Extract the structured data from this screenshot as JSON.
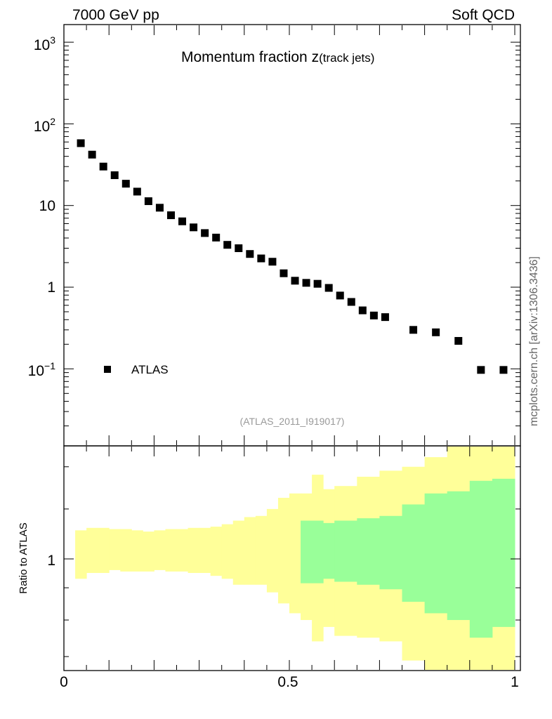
{
  "header": {
    "left": "7000 GeV pp",
    "right": "Soft QCD"
  },
  "side_label": "mcplots.cern.ch [arXiv:1306.3436]",
  "chart_data": [
    {
      "type": "scatter",
      "title_main": "Momentum fraction z",
      "title_sub": "(track jets)",
      "analysis_tag": "(ATLAS_2011_I919017)",
      "xlim": [
        0,
        1
      ],
      "ylim": [
        0.01,
        1500
      ],
      "y_scale": "log",
      "y_tick_labels": [
        "10^-1",
        "1",
        "10",
        "10^2",
        "10^3"
      ],
      "legend": {
        "position": "bottom-left",
        "entries": [
          "ATLAS"
        ]
      },
      "series": [
        {
          "name": "ATLAS",
          "marker": "filled-square",
          "color": "#000000",
          "x": [
            0.0375,
            0.0625,
            0.0875,
            0.1125,
            0.1375,
            0.1625,
            0.1875,
            0.2125,
            0.2375,
            0.2625,
            0.2875,
            0.3125,
            0.3375,
            0.3625,
            0.3875,
            0.4125,
            0.4375,
            0.4625,
            0.4875,
            0.5125,
            0.5375,
            0.5625,
            0.5875,
            0.6125,
            0.6375,
            0.6625,
            0.6875,
            0.7125,
            0.775,
            0.825,
            0.875,
            0.925,
            0.975
          ],
          "y": [
            58,
            42,
            30,
            23.5,
            18.5,
            14.8,
            11.3,
            9.4,
            7.6,
            6.4,
            5.4,
            4.6,
            4.05,
            3.3,
            3.0,
            2.55,
            2.25,
            2.05,
            1.48,
            1.2,
            1.13,
            1.1,
            0.98,
            0.79,
            0.66,
            0.52,
            0.45,
            0.43,
            0.3,
            0.28,
            0.22,
            0.097,
            0.097
          ]
        }
      ]
    },
    {
      "type": "area",
      "ylabel": "Ratio to ATLAS",
      "xlim": [
        0,
        1
      ],
      "y_tick_labels": [
        "1"
      ],
      "x_tick_labels": [
        "0",
        "0.5",
        "1"
      ],
      "colors": {
        "outer_band": "#ffff99",
        "inner_band": "#99ff99"
      },
      "bins": [
        {
          "lo": 0.025,
          "hi": 0.05,
          "outer": [
            0.93,
            1.11
          ]
        },
        {
          "lo": 0.05,
          "hi": 0.075,
          "outer": [
            0.95,
            1.12
          ]
        },
        {
          "lo": 0.075,
          "hi": 0.1,
          "outer": [
            0.95,
            1.12
          ]
        },
        {
          "lo": 0.1,
          "hi": 0.125,
          "outer": [
            0.96,
            1.115
          ]
        },
        {
          "lo": 0.125,
          "hi": 0.15,
          "outer": [
            0.955,
            1.115
          ]
        },
        {
          "lo": 0.15,
          "hi": 0.175,
          "outer": [
            0.955,
            1.11
          ]
        },
        {
          "lo": 0.175,
          "hi": 0.2,
          "outer": [
            0.955,
            1.105
          ]
        },
        {
          "lo": 0.2,
          "hi": 0.225,
          "outer": [
            0.96,
            1.11
          ]
        },
        {
          "lo": 0.225,
          "hi": 0.25,
          "outer": [
            0.955,
            1.115
          ]
        },
        {
          "lo": 0.25,
          "hi": 0.275,
          "outer": [
            0.955,
            1.115
          ]
        },
        {
          "lo": 0.275,
          "hi": 0.3,
          "outer": [
            0.95,
            1.12
          ]
        },
        {
          "lo": 0.3,
          "hi": 0.325,
          "outer": [
            0.95,
            1.12
          ]
        },
        {
          "lo": 0.325,
          "hi": 0.35,
          "outer": [
            0.94,
            1.125
          ]
        },
        {
          "lo": 0.35,
          "hi": 0.375,
          "outer": [
            0.93,
            1.135
          ]
        },
        {
          "lo": 0.375,
          "hi": 0.4,
          "outer": [
            0.91,
            1.15
          ]
        },
        {
          "lo": 0.4,
          "hi": 0.425,
          "outer": [
            0.91,
            1.165
          ]
        },
        {
          "lo": 0.425,
          "hi": 0.45,
          "outer": [
            0.91,
            1.17
          ]
        },
        {
          "lo": 0.45,
          "hi": 0.475,
          "outer": [
            0.885,
            1.2
          ]
        },
        {
          "lo": 0.475,
          "hi": 0.5,
          "outer": [
            0.85,
            1.25
          ]
        },
        {
          "lo": 0.5,
          "hi": 0.525,
          "outer": [
            0.82,
            1.27
          ]
        },
        {
          "lo": 0.525,
          "hi": 0.55,
          "outer": [
            0.8,
            1.27
          ],
          "inner": [
            0.915,
            1.15
          ]
        },
        {
          "lo": 0.55,
          "hi": 0.575,
          "outer": [
            0.74,
            1.36
          ],
          "inner": [
            0.915,
            1.15
          ]
        },
        {
          "lo": 0.575,
          "hi": 0.6,
          "outer": [
            0.78,
            1.29
          ],
          "inner": [
            0.93,
            1.14
          ]
        },
        {
          "lo": 0.6,
          "hi": 0.65,
          "outer": [
            0.755,
            1.305
          ],
          "inner": [
            0.92,
            1.15
          ]
        },
        {
          "lo": 0.65,
          "hi": 0.7,
          "outer": [
            0.75,
            1.35
          ],
          "inner": [
            0.91,
            1.16
          ]
        },
        {
          "lo": 0.7,
          "hi": 0.75,
          "outer": [
            0.74,
            1.38
          ],
          "inner": [
            0.895,
            1.17
          ]
        },
        {
          "lo": 0.75,
          "hi": 0.8,
          "outer": [
            0.69,
            1.4
          ],
          "inner": [
            0.855,
            1.22
          ]
        },
        {
          "lo": 0.8,
          "hi": 0.85,
          "outer": [
            0.66,
            1.45
          ],
          "inner": [
            0.82,
            1.27
          ]
        },
        {
          "lo": 0.85,
          "hi": 0.9,
          "outer": [
            0.62,
            1.7
          ],
          "inner": [
            0.8,
            1.28
          ]
        },
        {
          "lo": 0.9,
          "hi": 0.95,
          "outer": [
            0.35,
            1.85
          ],
          "inner": [
            0.75,
            1.33
          ]
        },
        {
          "lo": 0.95,
          "hi": 1.0,
          "outer": [
            0.35,
            1.88
          ],
          "inner": [
            0.78,
            1.34
          ]
        }
      ]
    }
  ]
}
